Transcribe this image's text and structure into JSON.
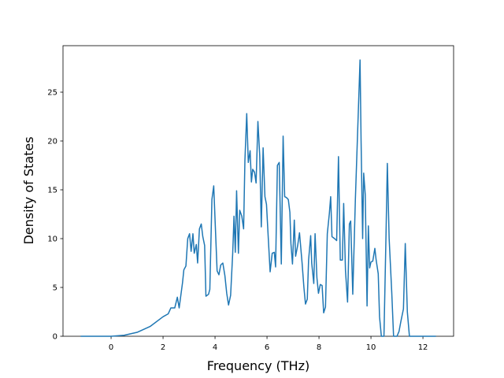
{
  "chart_data": {
    "type": "line",
    "x_label": "Frequency (THz)",
    "y_label": "Density of States",
    "x": [
      -1.17,
      0,
      0.5,
      1,
      1.5,
      2,
      2.2,
      2.3,
      2.45,
      2.55,
      2.62,
      2.75,
      2.8,
      2.88,
      2.95,
      3.02,
      3.08,
      3.15,
      3.2,
      3.28,
      3.33,
      3.4,
      3.47,
      3.53,
      3.6,
      3.65,
      3.75,
      3.8,
      3.88,
      3.95,
      4.0,
      4.08,
      4.15,
      4.22,
      4.3,
      4.38,
      4.45,
      4.52,
      4.6,
      4.68,
      4.73,
      4.78,
      4.83,
      4.9,
      4.95,
      5.03,
      5.1,
      5.15,
      5.22,
      5.28,
      5.35,
      5.4,
      5.45,
      5.52,
      5.58,
      5.65,
      5.72,
      5.78,
      5.85,
      5.92,
      5.98,
      6.05,
      6.12,
      6.2,
      6.28,
      6.33,
      6.4,
      6.47,
      6.55,
      6.62,
      6.68,
      6.75,
      6.82,
      6.88,
      6.92,
      6.98,
      7.05,
      7.1,
      7.18,
      7.25,
      7.35,
      7.42,
      7.48,
      7.55,
      7.6,
      7.68,
      7.72,
      7.8,
      7.85,
      7.92,
      7.98,
      8.05,
      8.12,
      8.18,
      8.25,
      8.32,
      8.4,
      8.45,
      8.5,
      8.6,
      8.68,
      8.75,
      8.82,
      8.9,
      8.95,
      9.02,
      9.1,
      9.17,
      9.22,
      9.3,
      9.4,
      9.58,
      9.62,
      9.68,
      9.72,
      9.78,
      9.85,
      9.9,
      9.95,
      10.0,
      10.07,
      10.15,
      10.2,
      10.28,
      10.33,
      10.4,
      10.5,
      10.58,
      10.63,
      10.7,
      10.8,
      10.87,
      11.0,
      11.08,
      11.15,
      11.25,
      11.32,
      11.4,
      11.48,
      11.6,
      12.5
    ],
    "series": [
      {
        "color": "#1f77b4",
        "values": [
          0,
          0,
          0.1,
          0.4,
          1.0,
          2.0,
          2.3,
          2.9,
          2.9,
          4.0,
          2.9,
          5.5,
          6.8,
          7.2,
          10,
          10.5,
          8.7,
          10.5,
          8.5,
          9.4,
          7.5,
          11,
          11.5,
          10.2,
          9.3,
          4.1,
          4.3,
          4.8,
          14,
          15.4,
          12,
          6.7,
          6.3,
          7.3,
          7.5,
          6.2,
          4.4,
          3.2,
          4.2,
          8.5,
          12.3,
          8.6,
          14.9,
          8.5,
          12.9,
          12.3,
          11,
          18,
          22.8,
          17.8,
          19,
          15.8,
          17.1,
          16.8,
          15.7,
          22,
          18.5,
          11.2,
          19.3,
          14.3,
          13.5,
          10,
          6.6,
          8.5,
          8.6,
          7.1,
          17.5,
          17.8,
          7.4,
          20.5,
          14.3,
          14.2,
          14,
          12.7,
          9.5,
          7.4,
          11.9,
          8.2,
          9.3,
          10.6,
          7.5,
          5,
          3.3,
          3.8,
          7.8,
          10.3,
          7.5,
          5.4,
          10.5,
          6,
          4.4,
          5.3,
          5.2,
          2.4,
          3,
          10.5,
          12.6,
          14.3,
          10.2,
          10,
          9.8,
          18.4,
          7.8,
          7.8,
          13.6,
          6.7,
          3.5,
          11.5,
          11.8,
          4.3,
          14,
          28.3,
          20,
          10,
          16.7,
          14.5,
          3.1,
          11.3,
          7,
          7.6,
          7.7,
          9,
          7.8,
          6.4,
          2,
          0,
          0,
          10.5,
          17.7,
          10,
          4.5,
          0,
          0,
          0.5,
          1.5,
          2.8,
          9.5,
          2.5,
          0,
          0,
          0
        ]
      }
    ],
    "xlim": [
      -1.85,
      13.18
    ],
    "ylim": [
      0,
      29.76
    ],
    "xticks": [
      0,
      2,
      4,
      6,
      8,
      10,
      12
    ],
    "yticks": [
      0,
      5,
      10,
      15,
      20,
      25
    ]
  }
}
